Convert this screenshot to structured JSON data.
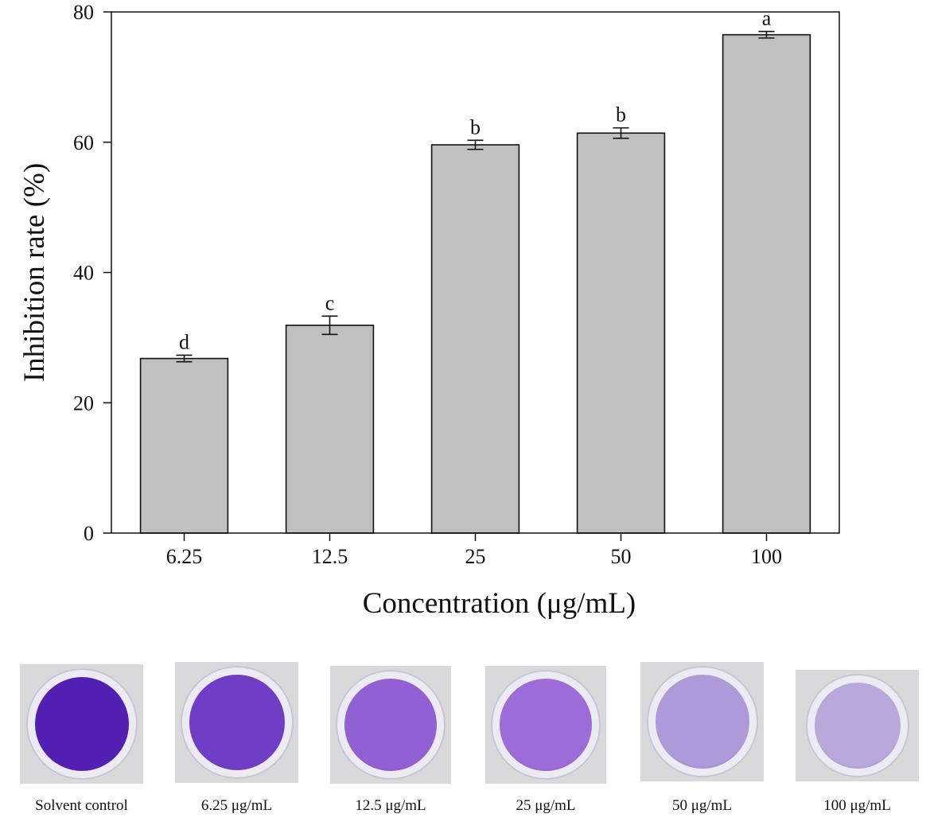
{
  "chart_data": {
    "type": "bar",
    "categories": [
      "6.25",
      "12.5",
      "25",
      "50",
      "100"
    ],
    "values": [
      26.8,
      31.9,
      59.6,
      61.4,
      76.5
    ],
    "errors": [
      0.5,
      1.4,
      0.7,
      0.8,
      0.5
    ],
    "significance_letters": [
      "d",
      "c",
      "b",
      "b",
      "a"
    ],
    "xlabel": "Concentration (μg/mL)",
    "ylabel": "Inhibition rate (%)",
    "ylim": [
      0,
      80
    ],
    "yticks": [
      "0",
      "20",
      "40",
      "60",
      "80"
    ],
    "bar_color": "#c0c0c0",
    "grid": false
  },
  "wells": [
    {
      "label": "Solvent control",
      "color": "#4a15b0"
    },
    {
      "label": "6.25 μg/mL",
      "color": "#6a34c4"
    },
    {
      "label": "12.5 μg/mL",
      "color": "#8c5ad2"
    },
    {
      "label": "25 μg/mL",
      "color": "#9866d6"
    },
    {
      "label": "50 μg/mL",
      "color": "#ab95d8"
    },
    {
      "label": "100 μg/mL",
      "color": "#b6a4da"
    }
  ]
}
